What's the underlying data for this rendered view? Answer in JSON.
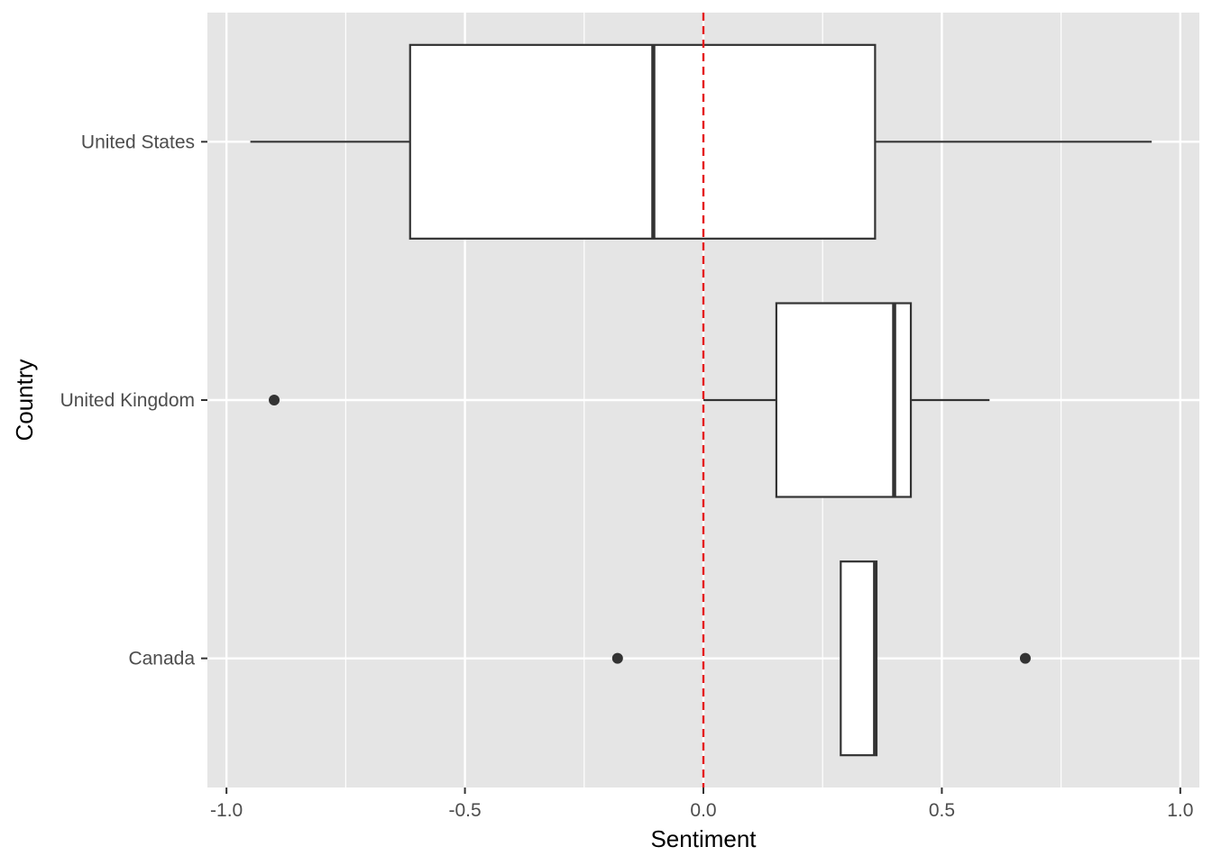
{
  "chart_data": {
    "type": "boxplot",
    "orientation": "horizontal",
    "xlabel": "Sentiment",
    "ylabel": "Country",
    "xlim": [
      -1.04,
      1.04
    ],
    "x_ticks": [
      -1.0,
      -0.5,
      0.0,
      0.5,
      1.0
    ],
    "x_tick_labels": [
      "-1.0",
      "-0.5",
      "0.0",
      "0.5",
      "1.0"
    ],
    "categories": [
      "United States",
      "United Kingdom",
      "Canada"
    ],
    "reference_line": {
      "x": 0.0,
      "style": "dashed",
      "color": "#e41a1c"
    },
    "boxes": [
      {
        "category": "United States",
        "whisker_low": -0.95,
        "q1": -0.615,
        "median": -0.105,
        "q3": 0.36,
        "whisker_high": 0.94,
        "outliers": []
      },
      {
        "category": "United Kingdom",
        "whisker_low": 0.0,
        "q1": 0.153,
        "median": 0.4,
        "q3": 0.435,
        "whisker_high": 0.6,
        "outliers": [
          -0.9
        ]
      },
      {
        "category": "Canada",
        "whisker_low": 0.288,
        "q1": 0.288,
        "median": 0.36,
        "q3": 0.363,
        "whisker_high": 0.363,
        "outliers": [
          -0.18,
          0.675
        ]
      }
    ],
    "colors": {
      "panel": "#e5e5e5",
      "grid": "#ffffff",
      "box_fill": "#ffffff",
      "box_line": "#333333",
      "ref_line": "#e41a1c",
      "text": "#4d4d4d"
    },
    "grid": true
  }
}
